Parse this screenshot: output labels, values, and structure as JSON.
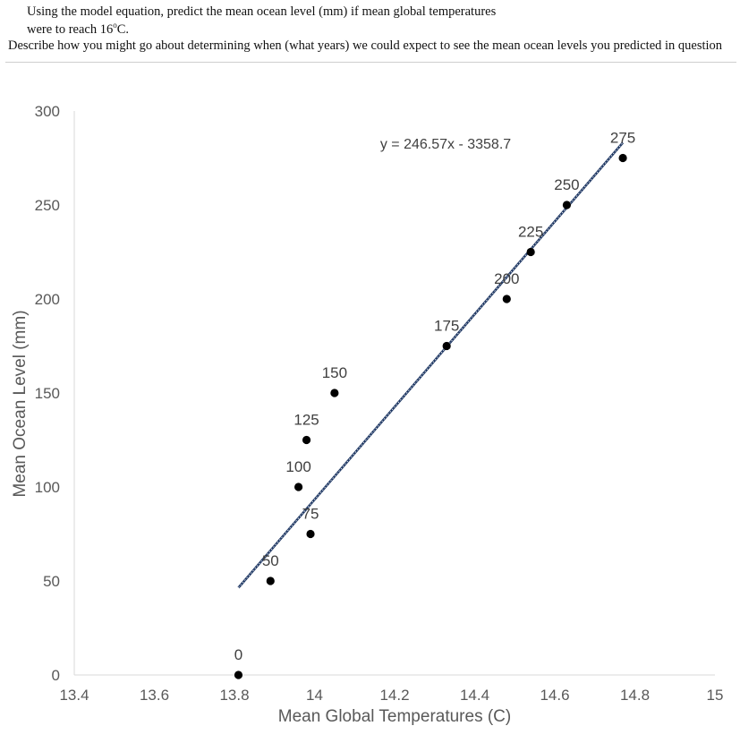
{
  "question": {
    "line1": "Using the model equation, predict the mean ocean level (mm) if mean global temperatures",
    "line2_prefix": "were to reach 16",
    "line2_sup": "o",
    "line2_suffix": "C.",
    "line3": "Describe how you might go about determining when (what years) we could expect to see the mean ocean levels you predicted in question"
  },
  "chart_data": {
    "type": "scatter",
    "xlabel": "Mean Global Temperatures (C)",
    "ylabel": "Mean Ocean Level (mm)",
    "xlim": [
      13.4,
      15
    ],
    "ylim": [
      0,
      300
    ],
    "xticks": [
      "13.4",
      "13.6",
      "13.8",
      "14",
      "14.2",
      "14.4",
      "14.6",
      "14.8",
      "15"
    ],
    "yticks": [
      "0",
      "50",
      "100",
      "150",
      "200",
      "250",
      "300"
    ],
    "points": [
      {
        "x": 13.81,
        "y": 0,
        "label": "0"
      },
      {
        "x": 13.89,
        "y": 50,
        "label": "50"
      },
      {
        "x": 13.99,
        "y": 75,
        "label": "75"
      },
      {
        "x": 13.96,
        "y": 100,
        "label": "100"
      },
      {
        "x": 13.98,
        "y": 125,
        "label": "125"
      },
      {
        "x": 14.05,
        "y": 150,
        "label": "150"
      },
      {
        "x": 14.33,
        "y": 175,
        "label": "175"
      },
      {
        "x": 14.48,
        "y": 200,
        "label": "200"
      },
      {
        "x": 14.54,
        "y": 225,
        "label": "225"
      },
      {
        "x": 14.63,
        "y": 250,
        "label": "250"
      },
      {
        "x": 14.77,
        "y": 275,
        "label": "275"
      }
    ],
    "trendline": {
      "slope": 246.57,
      "intercept": -3358.7,
      "x_range": [
        13.81,
        14.77
      ],
      "equation": "y = 246.57x - 3358.7",
      "color": "#1f3864"
    },
    "point_color": "#000000",
    "grid": false
  }
}
